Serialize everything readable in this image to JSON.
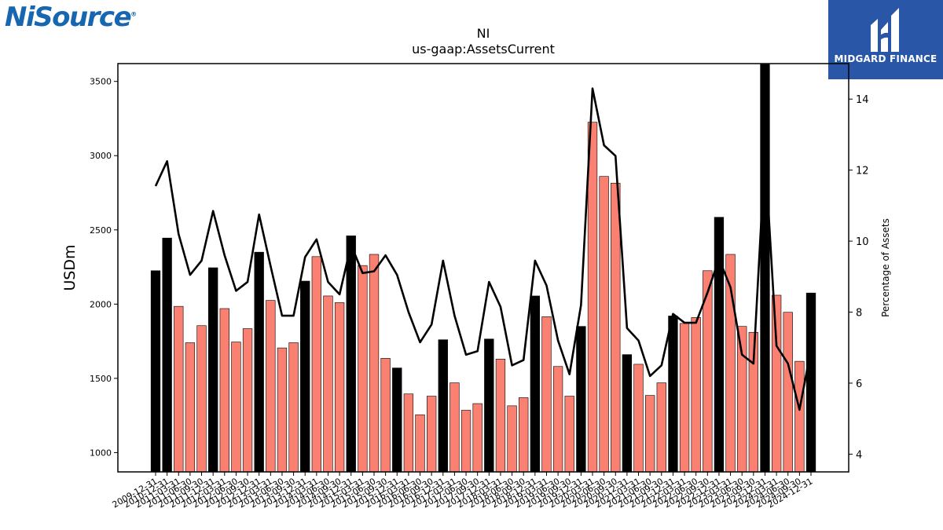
{
  "branding": {
    "left_logo_text": "NiSource",
    "left_logo_reg": "®",
    "right_logo_text": "MIDGARD FINANCE",
    "right_logo_bg": "#2a56a8"
  },
  "chart_data": {
    "type": "bar",
    "title": "NI",
    "subtitle": "us-gaap:AssetsCurrent",
    "ylabel": "USDm",
    "y2label": "Percentage of Assets",
    "ylim": [
      870,
      3620
    ],
    "y2lim": [
      3.5,
      15.0
    ],
    "yticks": [
      1000,
      1500,
      2000,
      2500,
      3000,
      3500
    ],
    "y2ticks": [
      4,
      6,
      8,
      10,
      12,
      14
    ],
    "colors": {
      "annual": "#000000",
      "quarterly": "#fa8072",
      "line": "#000000"
    },
    "xtick_labels": [
      "2009-12-31",
      "2010-12-31",
      "2011-03-31",
      "2011-06-30",
      "2011-09-30",
      "2011-12-31",
      "2012-03-31",
      "2012-06-30",
      "2012-09-30",
      "2012-12-31",
      "2013-03-31",
      "2013-06-30",
      "2013-09-30",
      "2013-12-31",
      "2014-03-31",
      "2014-06-30",
      "2014-09-30",
      "2014-12-31",
      "2015-03-31",
      "2015-06-30",
      "2015-09-30",
      "2015-12-31",
      "2016-03-31",
      "2016-06-30",
      "2016-09-30",
      "2016-12-31",
      "2017-03-31",
      "2017-06-30",
      "2017-09-30",
      "2017-12-31",
      "2018-03-31",
      "2018-06-30",
      "2018-09-30",
      "2018-12-31",
      "2019-03-31",
      "2019-06-30",
      "2019-09-30",
      "2019-12-31",
      "2020-03-31",
      "2020-06-30",
      "2020-09-30",
      "2020-12-31",
      "2021-03-31",
      "2021-06-30",
      "2021-09-30",
      "2021-12-31",
      "2022-03-31",
      "2022-06-30",
      "2022-09-30",
      "2022-12-31",
      "2023-03-31",
      "2023-06-30",
      "2023-09-30",
      "2023-12-31",
      "2024-03-31",
      "2024-06-30",
      "2024-09-30",
      "2024-12-31"
    ],
    "values": [
      2225,
      2445,
      1985,
      1740,
      1855,
      2245,
      1970,
      1745,
      1835,
      2350,
      2025,
      1705,
      1740,
      2155,
      2320,
      2055,
      2010,
      2460,
      2260,
      2335,
      1635,
      1570,
      1395,
      1255,
      1380,
      1760,
      1470,
      1285,
      1330,
      1765,
      1630,
      1315,
      1370,
      2055,
      1915,
      1580,
      1380,
      1850,
      3225,
      2860,
      2815,
      1660,
      1595,
      1385,
      1470,
      1920,
      1870,
      1910,
      2225,
      2585,
      2335,
      1850,
      1810,
      3615,
      2060,
      1945,
      1615,
      2075
    ],
    "annual_flags": [
      1,
      1,
      0,
      0,
      0,
      1,
      0,
      0,
      0,
      1,
      0,
      0,
      0,
      1,
      0,
      0,
      0,
      1,
      0,
      0,
      0,
      1,
      0,
      0,
      0,
      1,
      0,
      0,
      0,
      1,
      0,
      0,
      0,
      1,
      0,
      0,
      0,
      1,
      0,
      0,
      0,
      1,
      0,
      0,
      0,
      1,
      0,
      0,
      0,
      1,
      0,
      0,
      0,
      1,
      0,
      0,
      0,
      1
    ],
    "percentage_of_assets": [
      11.55,
      12.25,
      10.2,
      9.05,
      9.45,
      10.85,
      9.6,
      8.6,
      8.85,
      10.75,
      9.3,
      7.9,
      7.9,
      9.55,
      10.05,
      8.85,
      8.5,
      9.9,
      9.1,
      9.15,
      9.6,
      9.05,
      8.0,
      7.15,
      7.65,
      9.45,
      7.9,
      6.8,
      6.9,
      8.85,
      8.15,
      6.5,
      6.65,
      9.45,
      8.75,
      7.2,
      6.25,
      8.2,
      14.3,
      12.7,
      12.4,
      7.55,
      7.2,
      6.2,
      6.5,
      7.95,
      7.7,
      7.7,
      8.55,
      9.5,
      8.7,
      6.8,
      6.55,
      12.5,
      7.05,
      6.55,
      5.25,
      6.95
    ]
  }
}
